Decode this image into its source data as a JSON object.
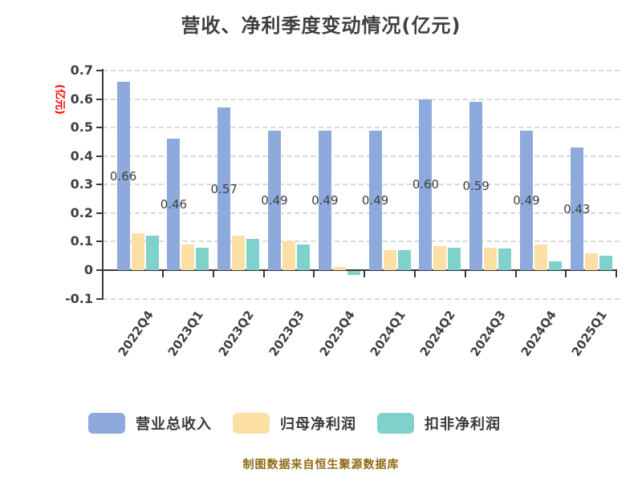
{
  "title": "营收、净利季度变动情况(亿元)",
  "footer": "制图数据来自恒生聚源数据库",
  "colors": {
    "revenue_bar": "#8ea9db",
    "net_profit_bar": "#fcdfa4",
    "non_gaap_bar": "#7fd2cc",
    "gridline": "#d9d9d9",
    "axis": "#3a3a3a",
    "text": "#3f3f3f",
    "y_axis_title": "#ff0000",
    "footer_text": "#8e6b12"
  },
  "chart_data": {
    "type": "bar",
    "title": "营收、净利季度变动情况(亿元)",
    "xlabel": "",
    "ylabel": "(亿元)",
    "ylim": [
      -0.1,
      0.7
    ],
    "grid": "horizontal dashed",
    "legend_position": "bottom",
    "categories": [
      "2022Q4",
      "2023Q1",
      "2023Q2",
      "2023Q3",
      "2023Q4",
      "2024Q1",
      "2024Q2",
      "2024Q3",
      "2024Q4",
      "2025Q1"
    ],
    "yticks": [
      {
        "value": 0.7,
        "label": "0.7"
      },
      {
        "value": 0.6,
        "label": "0.6"
      },
      {
        "value": 0.5,
        "label": "0.5"
      },
      {
        "value": 0.4,
        "label": "0.4"
      },
      {
        "value": 0.3,
        "label": "0.3"
      },
      {
        "value": 0.2,
        "label": "0.2"
      },
      {
        "value": 0.1,
        "label": "0.1"
      },
      {
        "value": 0,
        "label": "0"
      },
      {
        "value": -0.1,
        "label": "-0.1"
      }
    ],
    "series": [
      {
        "name": "营业总收入",
        "color": "#8ea9db",
        "values": [
          0.66,
          0.46,
          0.57,
          0.49,
          0.49,
          0.49,
          0.6,
          0.59,
          0.49,
          0.43
        ],
        "labels": [
          "0.66",
          "0.46",
          "0.57",
          "0.49",
          "0.49",
          "0.49",
          "0.60",
          "0.59",
          "0.49",
          "0.43"
        ]
      },
      {
        "name": "归母净利润",
        "color": "#fcdfa4",
        "values": [
          0.13,
          0.09,
          0.12,
          0.1,
          0.01,
          0.07,
          0.085,
          0.08,
          0.09,
          0.06
        ],
        "labels": []
      },
      {
        "name": "扣非净利润",
        "color": "#7fd2cc",
        "values": [
          0.12,
          0.08,
          0.11,
          0.09,
          -0.015,
          0.07,
          0.08,
          0.075,
          0.03,
          0.05
        ],
        "labels": []
      }
    ]
  }
}
